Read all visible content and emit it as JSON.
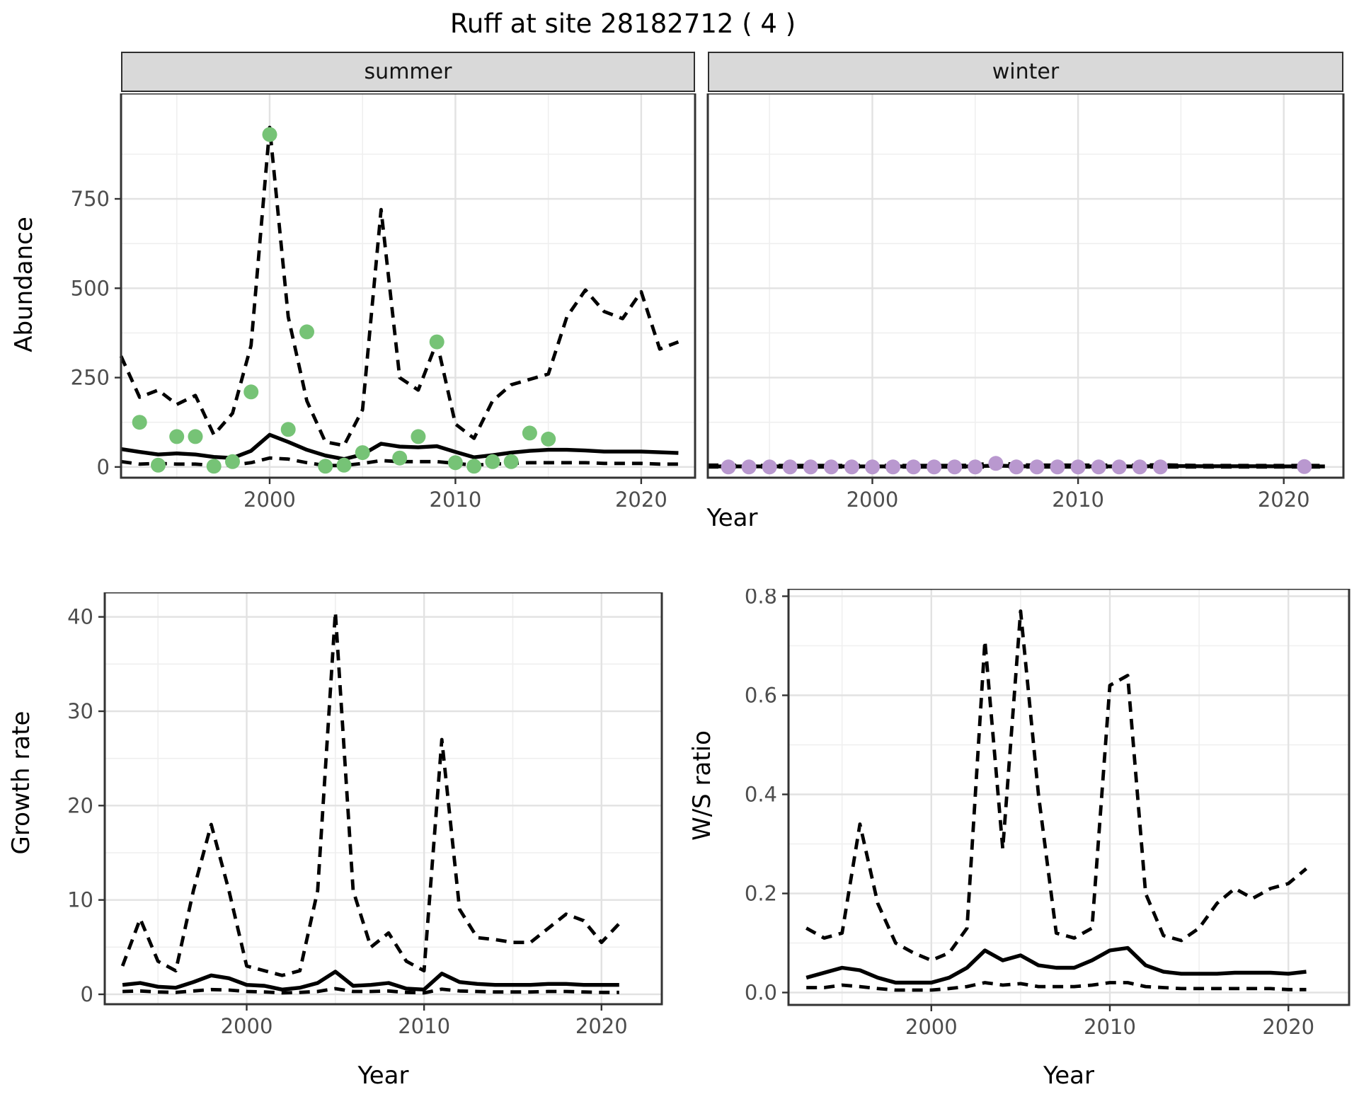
{
  "title": "Ruff at site 28182712 ( 4 )",
  "facets": {
    "summer_label": "summer",
    "winter_label": "winter"
  },
  "axes": {
    "abundance_label": "Abundance",
    "year_label": "Year",
    "growth_label": "Growth rate",
    "ws_label": "W/S ratio"
  },
  "colors": {
    "summer_point": "#76C376",
    "winter_point": "#B998CF",
    "line": "#000000",
    "strip_bg": "#d9d9d9",
    "panel_border": "#333333",
    "grid_major": "#e2e2e2",
    "grid_minor": "#efefef",
    "tick_text": "#4d4d4d"
  },
  "chart_data": [
    {
      "type": "line",
      "panel": "abundance-summer",
      "facet": "summer",
      "title": "Abundance (summer facet): model estimate with dashed 95% interval and observed counts",
      "xlabel": "Year",
      "ylabel": "Abundance",
      "xlim": [
        1992,
        2022.9
      ],
      "ylim": [
        -30,
        1045
      ],
      "grid": true,
      "legend": false,
      "x_ticks": {
        "values": [
          2000,
          2010,
          2020
        ],
        "labels": [
          "2000",
          "2010",
          "2020"
        ]
      },
      "x_minor": [
        1995,
        2005,
        2015
      ],
      "y_ticks": {
        "values": [
          0,
          250,
          500,
          750
        ],
        "labels": [
          "0",
          "250",
          "500",
          "750"
        ]
      },
      "y_minor": [
        125,
        375,
        625,
        875
      ],
      "line_years": [
        1992,
        1993,
        1994,
        1995,
        1996,
        1997,
        1998,
        1999,
        2000,
        2001,
        2002,
        2003,
        2004,
        2005,
        2006,
        2007,
        2008,
        2009,
        2010,
        2011,
        2012,
        2013,
        2014,
        2015,
        2016,
        2017,
        2018,
        2019,
        2020,
        2021,
        2022
      ],
      "series": [
        {
          "name": "median estimate",
          "style": "solid",
          "values": [
            50,
            42,
            35,
            38,
            35,
            28,
            25,
            45,
            90,
            70,
            48,
            32,
            22,
            35,
            65,
            57,
            55,
            58,
            42,
            27,
            33,
            40,
            45,
            48,
            48,
            46,
            43,
            43,
            43,
            41,
            39
          ]
        },
        {
          "name": "upper 95% CI",
          "style": "dashed",
          "values": [
            310,
            195,
            215,
            175,
            200,
            90,
            150,
            340,
            950,
            420,
            185,
            70,
            60,
            160,
            720,
            250,
            215,
            350,
            120,
            80,
            185,
            230,
            245,
            260,
            420,
            495,
            435,
            415,
            490,
            330,
            350
          ]
        },
        {
          "name": "lower 95% CI",
          "style": "dashed",
          "values": [
            15,
            8,
            10,
            8,
            8,
            4,
            5,
            12,
            25,
            22,
            12,
            4,
            4,
            10,
            18,
            15,
            15,
            15,
            10,
            5,
            8,
            10,
            12,
            12,
            12,
            12,
            10,
            10,
            10,
            8,
            8
          ]
        }
      ],
      "observed": {
        "name": "observed abundance",
        "marker": "circle",
        "color": "#76C376",
        "years": [
          1993,
          1994,
          1995,
          1996,
          1997,
          1998,
          1999,
          2000,
          2001,
          2002,
          2003,
          2004,
          2005,
          2007,
          2008,
          2009,
          2010,
          2011,
          2012,
          2013,
          2014,
          2015
        ],
        "values": [
          125,
          5,
          85,
          85,
          2,
          15,
          210,
          930,
          105,
          378,
          2,
          5,
          40,
          25,
          85,
          350,
          12,
          2,
          15,
          15,
          95,
          78
        ]
      }
    },
    {
      "type": "line",
      "panel": "abundance-winter",
      "facet": "winter",
      "title": "Abundance (winter facet): model estimate with dashed 95% interval and observed counts",
      "xlabel": "Year",
      "ylabel": "Abundance",
      "xlim": [
        1992,
        2022.9
      ],
      "ylim": [
        -30,
        1045
      ],
      "grid": true,
      "legend": false,
      "x_ticks": {
        "values": [
          2000,
          2010,
          2020
        ],
        "labels": [
          "2000",
          "2010",
          "2020"
        ]
      },
      "x_minor": [
        1995,
        2005,
        2015
      ],
      "y_ticks": {
        "values": [
          0,
          250,
          500,
          750
        ],
        "labels": [
          "0",
          "250",
          "500",
          "750"
        ]
      },
      "y_minor": [
        125,
        375,
        625,
        875
      ],
      "line_years": [
        1992,
        1993,
        1994,
        1995,
        1996,
        1997,
        1998,
        1999,
        2000,
        2001,
        2002,
        2003,
        2004,
        2005,
        2006,
        2007,
        2008,
        2009,
        2010,
        2011,
        2012,
        2013,
        2014,
        2015,
        2016,
        2017,
        2018,
        2019,
        2020,
        2021,
        2022
      ],
      "series": [
        {
          "name": "median estimate",
          "style": "solid",
          "values": [
            1.5,
            1.5,
            1.5,
            1.5,
            1.5,
            1.5,
            1.5,
            1.5,
            1.5,
            1.5,
            1.5,
            1.5,
            1.5,
            1.5,
            4,
            2,
            1.5,
            1.5,
            1.5,
            1.5,
            1.5,
            1.5,
            2.5,
            2.5,
            2,
            2,
            2,
            2,
            1.5,
            1.5,
            1.5
          ]
        },
        {
          "name": "upper 95% CI",
          "style": "dashed",
          "values": [
            5,
            5,
            4,
            4,
            4,
            4,
            4,
            4,
            4,
            4,
            4,
            4,
            4,
            5,
            14,
            6,
            5,
            5,
            5,
            5,
            5,
            5,
            6,
            5,
            4,
            4,
            4,
            4,
            4,
            4,
            4
          ]
        },
        {
          "name": "lower 95% CI",
          "style": "dashed",
          "values": [
            0,
            0,
            0,
            0,
            0,
            0,
            0,
            0,
            0,
            0,
            0,
            0,
            0,
            0,
            0,
            0,
            0,
            0,
            0,
            0,
            0,
            0,
            0,
            0,
            0,
            0,
            0,
            0,
            0,
            0,
            0
          ]
        }
      ],
      "observed": {
        "name": "observed abundance",
        "marker": "circle",
        "color": "#B998CF",
        "years": [
          1993,
          1994,
          1995,
          1996,
          1997,
          1998,
          1999,
          2000,
          2001,
          2002,
          2003,
          2004,
          2005,
          2006,
          2007,
          2008,
          2009,
          2010,
          2011,
          2012,
          2013,
          2014,
          2021
        ],
        "values": [
          0,
          0,
          0,
          0,
          0,
          0,
          0,
          0,
          0,
          0,
          0,
          0,
          0,
          10,
          0,
          0,
          0,
          0,
          0,
          0,
          0,
          0,
          1
        ]
      }
    },
    {
      "type": "line",
      "panel": "growth",
      "title": "Growth rate: median with dashed 95% interval",
      "xlabel": "Year",
      "ylabel": "Growth rate",
      "xlim": [
        1992,
        2023.4
      ],
      "ylim": [
        -1.05,
        42.6
      ],
      "grid": true,
      "legend": false,
      "x_ticks": {
        "values": [
          2000,
          2010,
          2020
        ],
        "labels": [
          "2000",
          "2010",
          "2020"
        ]
      },
      "x_minor": [
        1995,
        2005,
        2015
      ],
      "y_ticks": {
        "values": [
          0,
          10,
          20,
          30,
          40
        ],
        "labels": [
          "0",
          "10",
          "20",
          "30",
          "40"
        ]
      },
      "y_minor": [
        5,
        15,
        25,
        35
      ],
      "line_years": [
        1993,
        1994,
        1995,
        1996,
        1997,
        1998,
        1999,
        2000,
        2001,
        2002,
        2003,
        2004,
        2005,
        2006,
        2007,
        2008,
        2009,
        2010,
        2011,
        2012,
        2013,
        2014,
        2015,
        2016,
        2017,
        2018,
        2019,
        2020,
        2021
      ],
      "series": [
        {
          "name": "median estimate",
          "style": "solid",
          "values": [
            1,
            1.2,
            0.8,
            0.7,
            1.3,
            2,
            1.7,
            1,
            0.9,
            0.5,
            0.7,
            1.2,
            2.4,
            0.9,
            1,
            1.2,
            0.6,
            0.5,
            2.2,
            1.3,
            1.1,
            1,
            1,
            1,
            1.1,
            1.1,
            1,
            1,
            1
          ]
        },
        {
          "name": "upper 95% CI",
          "style": "dashed",
          "values": [
            3,
            8,
            3.5,
            2.5,
            11,
            18,
            11,
            3,
            2.5,
            2,
            2.5,
            11,
            40.5,
            11,
            5,
            6.5,
            3.5,
            2.5,
            27,
            9,
            6,
            5.8,
            5.5,
            5.5,
            7,
            8.5,
            7.8,
            5.5,
            7.5
          ]
        },
        {
          "name": "lower 95% CI",
          "style": "dashed",
          "values": [
            0.3,
            0.35,
            0.25,
            0.2,
            0.35,
            0.5,
            0.45,
            0.3,
            0.25,
            0.15,
            0.2,
            0.3,
            0.6,
            0.3,
            0.3,
            0.35,
            0.2,
            0.15,
            0.55,
            0.35,
            0.3,
            0.25,
            0.25,
            0.25,
            0.3,
            0.3,
            0.25,
            0.2,
            0.2
          ]
        }
      ]
    },
    {
      "type": "line",
      "panel": "ws",
      "title": "Winter/Summer ratio: median with dashed 95% interval",
      "xlabel": "Year",
      "ylabel": "W/S ratio",
      "xlim": [
        1992,
        2023.4
      ],
      "ylim": [
        -0.025,
        0.815
      ],
      "grid": true,
      "legend": false,
      "x_ticks": {
        "values": [
          2000,
          2010,
          2020
        ],
        "labels": [
          "2000",
          "2010",
          "2020"
        ]
      },
      "x_minor": [
        1995,
        2005,
        2015
      ],
      "y_ticks": {
        "values": [
          0,
          0.2,
          0.4,
          0.6,
          0.8
        ],
        "labels": [
          "0.0",
          "0.2",
          "0.4",
          "0.6",
          "0.8"
        ]
      },
      "y_minor": [
        0.1,
        0.3,
        0.5,
        0.7
      ],
      "line_years": [
        1993,
        1994,
        1995,
        1996,
        1997,
        1998,
        1999,
        2000,
        2001,
        2002,
        2003,
        2004,
        2005,
        2006,
        2007,
        2008,
        2009,
        2010,
        2011,
        2012,
        2013,
        2014,
        2015,
        2016,
        2017,
        2018,
        2019,
        2020,
        2021
      ],
      "series": [
        {
          "name": "median estimate",
          "style": "solid",
          "values": [
            0.03,
            0.04,
            0.05,
            0.045,
            0.03,
            0.02,
            0.02,
            0.02,
            0.03,
            0.05,
            0.085,
            0.065,
            0.075,
            0.055,
            0.05,
            0.05,
            0.065,
            0.085,
            0.09,
            0.055,
            0.042,
            0.038,
            0.038,
            0.038,
            0.04,
            0.04,
            0.04,
            0.038,
            0.042
          ]
        },
        {
          "name": "upper 95% CI",
          "style": "dashed",
          "values": [
            0.13,
            0.11,
            0.12,
            0.34,
            0.18,
            0.1,
            0.08,
            0.065,
            0.08,
            0.13,
            0.71,
            0.29,
            0.77,
            0.4,
            0.12,
            0.11,
            0.13,
            0.62,
            0.64,
            0.2,
            0.115,
            0.105,
            0.13,
            0.18,
            0.21,
            0.19,
            0.21,
            0.22,
            0.25
          ]
        },
        {
          "name": "lower 95% CI",
          "style": "dashed",
          "values": [
            0.01,
            0.01,
            0.015,
            0.012,
            0.008,
            0.005,
            0.005,
            0.005,
            0.008,
            0.012,
            0.02,
            0.015,
            0.018,
            0.012,
            0.012,
            0.012,
            0.015,
            0.02,
            0.02,
            0.012,
            0.01,
            0.008,
            0.008,
            0.008,
            0.008,
            0.008,
            0.008,
            0.006,
            0.006
          ]
        }
      ]
    }
  ]
}
